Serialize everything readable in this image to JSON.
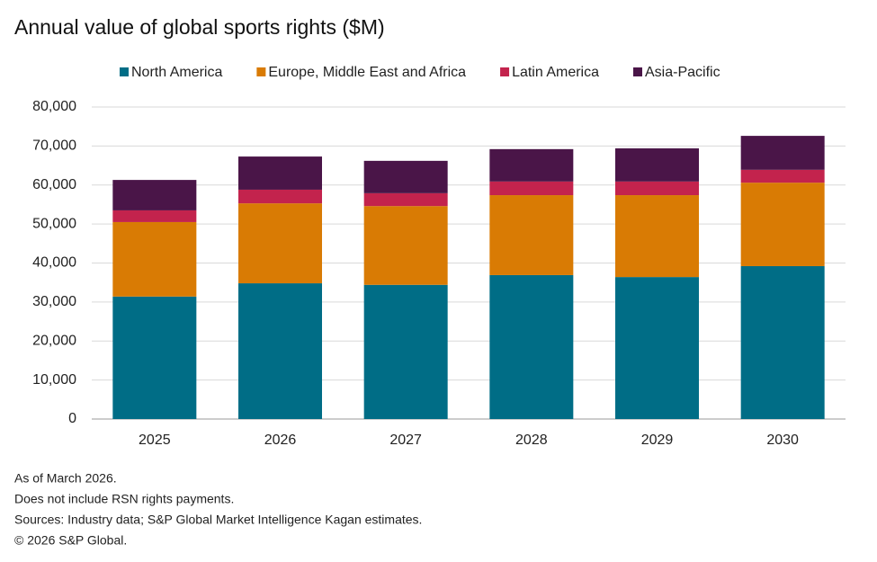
{
  "chart_data": {
    "type": "stacked_bar",
    "title": "Annual value of global sports rights ($M)",
    "categories": [
      "2025",
      "2026",
      "2027",
      "2028",
      "2029",
      "2030"
    ],
    "series": [
      {
        "name": "North America",
        "color": "#006d86",
        "values": [
          31400,
          34800,
          34400,
          36900,
          36400,
          39200
        ]
      },
      {
        "name": "Europe, Middle East and Africa",
        "color": "#d97b04",
        "values": [
          19100,
          20500,
          20200,
          20500,
          21000,
          21400
        ]
      },
      {
        "name": "Latin America",
        "color": "#c3234d",
        "values": [
          3000,
          3500,
          3300,
          3500,
          3500,
          3300
        ]
      },
      {
        "name": "Asia-Pacific",
        "color": "#4a1548",
        "values": [
          7800,
          8500,
          8300,
          8300,
          8500,
          8700
        ]
      }
    ],
    "ylim": [
      0,
      80000
    ],
    "yticks": [
      0,
      {
        "value": 10000,
        "label": "10,000"
      },
      {
        "value": 20000,
        "label": "20,000"
      },
      {
        "value": 30000,
        "label": "30,000"
      },
      {
        "value": 40000,
        "label": "40,000"
      },
      {
        "value": 50000,
        "label": "50,000"
      },
      {
        "value": 60000,
        "label": "60,000"
      },
      {
        "value": 70000,
        "label": "70,000"
      },
      {
        "value": 80000,
        "label": "80,000"
      }
    ],
    "grid": true,
    "notes": [
      "As of March 2026.",
      "Does not include RSN rights payments.",
      "Sources: Industry data; S&P Global Market Intelligence Kagan estimates.",
      "© 2026 S&P Global."
    ]
  }
}
